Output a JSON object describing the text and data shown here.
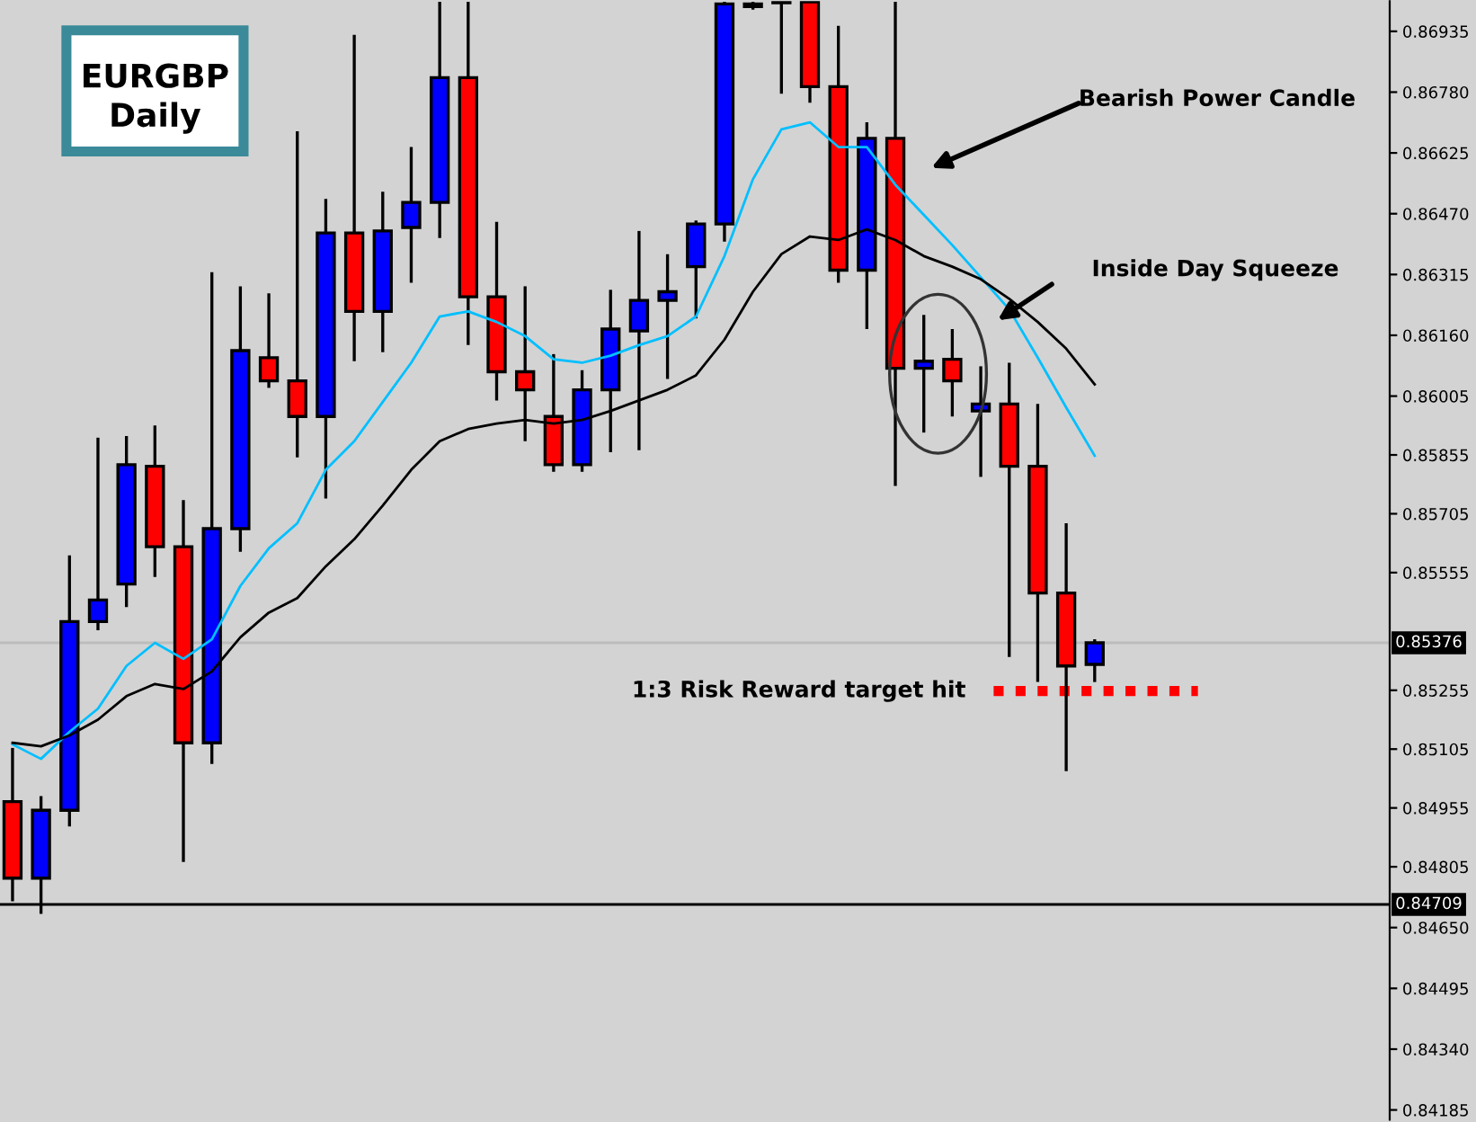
{
  "chart_data": {
    "type": "candlestick",
    "title": "EURGBP",
    "subtitle": "Daily",
    "categories": [
      null,
      null,
      null,
      null,
      null,
      null,
      null,
      null,
      null,
      null,
      null,
      null,
      null,
      null,
      null,
      null,
      null,
      null,
      null,
      null,
      null,
      null,
      null,
      null,
      null,
      null,
      null,
      null,
      null,
      null,
      null,
      null,
      null,
      null,
      null,
      null,
      null,
      null,
      null
    ],
    "ohlc": [
      [
        0.84971,
        0.85108,
        0.84717,
        0.84776
      ],
      [
        0.84776,
        0.84985,
        0.84685,
        0.84949
      ],
      [
        0.84949,
        0.85599,
        0.84908,
        0.8543
      ],
      [
        0.8543,
        0.85899,
        0.85408,
        0.85485
      ],
      [
        0.85526,
        0.85903,
        0.85467,
        0.8583
      ],
      [
        0.85826,
        0.8593,
        0.85544,
        0.85621
      ],
      [
        0.85621,
        0.8574,
        0.84817,
        0.85121
      ],
      [
        0.85121,
        0.86321,
        0.85067,
        0.85667
      ],
      [
        0.85667,
        0.86285,
        0.85608,
        0.86121
      ],
      [
        0.86103,
        0.86267,
        0.86026,
        0.86044
      ],
      [
        0.86044,
        0.8668,
        0.85849,
        0.85953
      ],
      [
        0.85953,
        0.86508,
        0.85744,
        0.86421
      ],
      [
        0.86421,
        0.86926,
        0.86094,
        0.86221
      ],
      [
        0.86221,
        0.86526,
        0.86117,
        0.86426
      ],
      [
        0.86435,
        0.8664,
        0.86294,
        0.86499
      ],
      [
        0.86499,
        0.8701,
        0.86408,
        0.86817
      ],
      [
        0.86817,
        0.8701,
        0.86135,
        0.86258
      ],
      [
        0.86258,
        0.86449,
        0.85994,
        0.86067
      ],
      [
        0.86067,
        0.86285,
        0.8589,
        0.86021
      ],
      [
        0.85953,
        0.86112,
        0.85812,
        0.8583
      ],
      [
        0.8583,
        0.86071,
        0.85812,
        0.86021
      ],
      [
        0.86021,
        0.86276,
        0.85862,
        0.86176
      ],
      [
        0.86171,
        0.86426,
        0.85867,
        0.86249
      ],
      [
        0.86249,
        0.86367,
        0.86049,
        0.86271
      ],
      [
        0.86335,
        0.86453,
        0.86203,
        0.86444
      ],
      [
        0.86444,
        0.8701,
        0.86399,
        0.87005
      ],
      [
        0.87005,
        0.8701,
        0.8699,
        0.86998
      ],
      [
        0.8701,
        0.8701,
        0.86776,
        0.87008
      ],
      [
        0.8701,
        0.8701,
        0.86753,
        0.86794
      ],
      [
        0.86794,
        0.86949,
        0.86294,
        0.86326
      ],
      [
        0.86326,
        0.86703,
        0.86176,
        0.86662
      ],
      [
        0.86662,
        0.8701,
        0.85776,
        0.86076
      ],
      [
        0.86076,
        0.86212,
        0.85912,
        0.86094
      ],
      [
        0.86099,
        0.86176,
        0.85953,
        0.86044
      ],
      [
        0.85967,
        0.86081,
        0.85799,
        0.85985
      ],
      [
        0.85985,
        0.8609,
        0.8534,
        0.85826
      ],
      [
        0.85826,
        0.85985,
        0.85276,
        0.85503
      ],
      [
        0.85503,
        0.85681,
        0.85049,
        0.85317
      ],
      [
        0.85321,
        0.85385,
        0.85276,
        0.85376
      ]
    ],
    "colors": [
      "#ff0000",
      "#0000ff",
      "#0000ff",
      "#0000ff",
      "#0000ff",
      "#ff0000",
      "#ff0000",
      "#0000ff",
      "#0000ff",
      "#ff0000",
      "#ff0000",
      "#0000ff",
      "#ff0000",
      "#0000ff",
      "#0000ff",
      "#0000ff",
      "#ff0000",
      "#ff0000",
      "#ff0000",
      "#ff0000",
      "#0000ff",
      "#0000ff",
      "#0000ff",
      "#0000ff",
      "#0000ff",
      "#0000ff",
      "#ff0000",
      "#ff0000",
      "#ff0000",
      "#ff0000",
      "#0000ff",
      "#ff0000",
      "#0000ff",
      "#ff0000",
      "#0000ff",
      "#ff0000",
      "#ff0000",
      "#ff0000",
      "#0000ff"
    ],
    "series": [
      {
        "type": "line",
        "color": "#00bfff",
        "values": [
          0.85117,
          0.8508,
          0.85149,
          0.85208,
          0.85317,
          0.85376,
          0.85335,
          0.85385,
          0.85521,
          0.85617,
          0.85681,
          0.85817,
          0.8589,
          0.8599,
          0.8609,
          0.86208,
          0.86221,
          0.86194,
          0.86158,
          0.86099,
          0.8609,
          0.86108,
          0.86135,
          0.86158,
          0.86208,
          0.86362,
          0.86558,
          0.86685,
          0.86703,
          0.8664,
          0.8664,
          0.86544,
          0.86467,
          0.8639,
          0.86308,
          0.86226,
          0.86103,
          0.85976,
          0.85853
        ]
      },
      {
        "type": "line",
        "color": "#000000",
        "values": [
          0.85121,
          0.85112,
          0.8514,
          0.8518,
          0.8524,
          0.85271,
          0.85258,
          0.85303,
          0.8539,
          0.85453,
          0.8549,
          0.85571,
          0.8564,
          0.85726,
          0.85817,
          0.8589,
          0.85921,
          0.85935,
          0.85944,
          0.85935,
          0.85944,
          0.85967,
          0.85994,
          0.86021,
          0.86058,
          0.86149,
          0.86271,
          0.86367,
          0.86412,
          0.86403,
          0.8643,
          0.86403,
          0.86362,
          0.86335,
          0.86303,
          0.86253,
          0.86194,
          0.86126,
          0.86035
        ]
      }
    ],
    "ylim": [
      0.8416,
      0.87012
    ],
    "yticks": [
      0.86935,
      {
        "value": 0.8678,
        "label": "0.86780"
      },
      0.86625,
      {
        "value": 0.8647,
        "label": "0.86470"
      },
      0.86315,
      {
        "value": 0.8616,
        "label": "0.86160"
      },
      0.86005,
      0.85855,
      0.85705,
      0.85555,
      0.85255,
      0.85105,
      0.84955,
      0.84805,
      {
        "value": 0.8465,
        "label": "0.84650"
      },
      0.84495,
      {
        "value": 0.8434,
        "label": "0.84340"
      },
      0.84185
    ],
    "tick_labels": "y",
    "ref_lines": [
      {
        "axis": "y",
        "value": 0.85376,
        "label": "0.85376",
        "color": "#bdbdbd"
      },
      {
        "axis": "y",
        "value": 0.84709,
        "label": "0.84709",
        "color": "#000000"
      },
      {
        "axis": "y",
        "value": 0.85253,
        "label": "1:3 Risk Reward target hit",
        "color": "#ff0000",
        "line_style": "dotted"
      }
    ],
    "annotations": [
      "Bearish Power Candle",
      "Inside Day Squeeze"
    ],
    "grid": false
  }
}
